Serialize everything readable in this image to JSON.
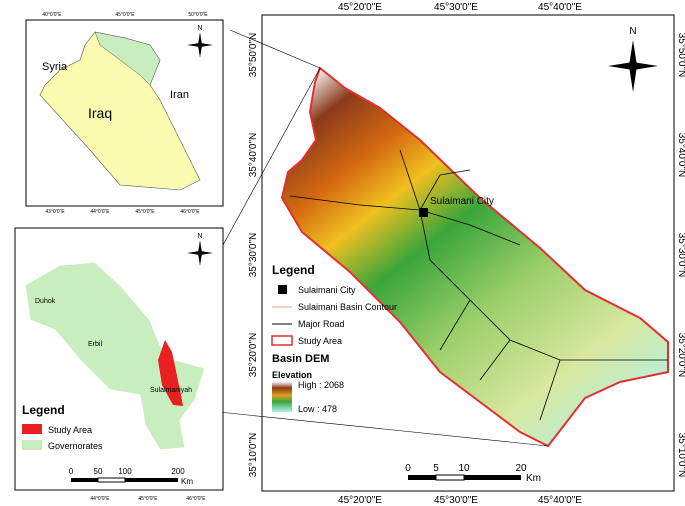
{
  "main_map": {
    "top_ticks": [
      "45°20'0\"E",
      "45°30'0\"E",
      "45°40'0\"E"
    ],
    "bottom_ticks": [
      "45°20'0\"E",
      "45°30'0\"E",
      "45°40'0\"E"
    ],
    "left_ticks": [
      "35°50'0\"N",
      "35°40'0\"N",
      "35°30'0\"N",
      "35°20'0\"N",
      "35°10'0\"N"
    ],
    "right_ticks": [
      "35°50'0\"N",
      "35°40'0\"N",
      "35°30'0\"N",
      "35°20'0\"N",
      "35°10'0\"N"
    ],
    "city_label": "Sulaimani City",
    "north": "N",
    "legend": {
      "title": "Legend",
      "items": [
        "Sulaimani City",
        "Sulaimani Basin Contour",
        "Major Road",
        "Study Area"
      ],
      "dem_title": "Basin DEM",
      "elevation": "Elevation",
      "high": "High : 2068",
      "low": "Low : 478"
    },
    "scale": {
      "labels": [
        "0",
        "5",
        "10",
        "20"
      ],
      "unit": "Km"
    }
  },
  "inset_country": {
    "labels": [
      "Syria",
      "Iraq",
      "Iran"
    ],
    "north": "N",
    "top_ticks": [
      "40°0'0\"E",
      "45°0'0\"E",
      "50°0'0\"E"
    ],
    "bottom_ticks": [
      "43°0'0\"E",
      "44°0'0\"E",
      "45°0'0\"E",
      "46°0'0\"E"
    ]
  },
  "inset_governorates": {
    "labels": [
      "Duhok",
      "Erbil",
      "Sulaimaniyah"
    ],
    "north": "N",
    "legend": {
      "title": "Legend",
      "items": [
        "Study Area",
        "Governorates"
      ]
    },
    "scale": {
      "labels": [
        "0",
        "50",
        "100",
        "200"
      ],
      "unit": "Km"
    },
    "bottom_ticks": [
      "44°0'0\"E",
      "45°0'0\"E",
      "46°0'0\"E"
    ]
  }
}
